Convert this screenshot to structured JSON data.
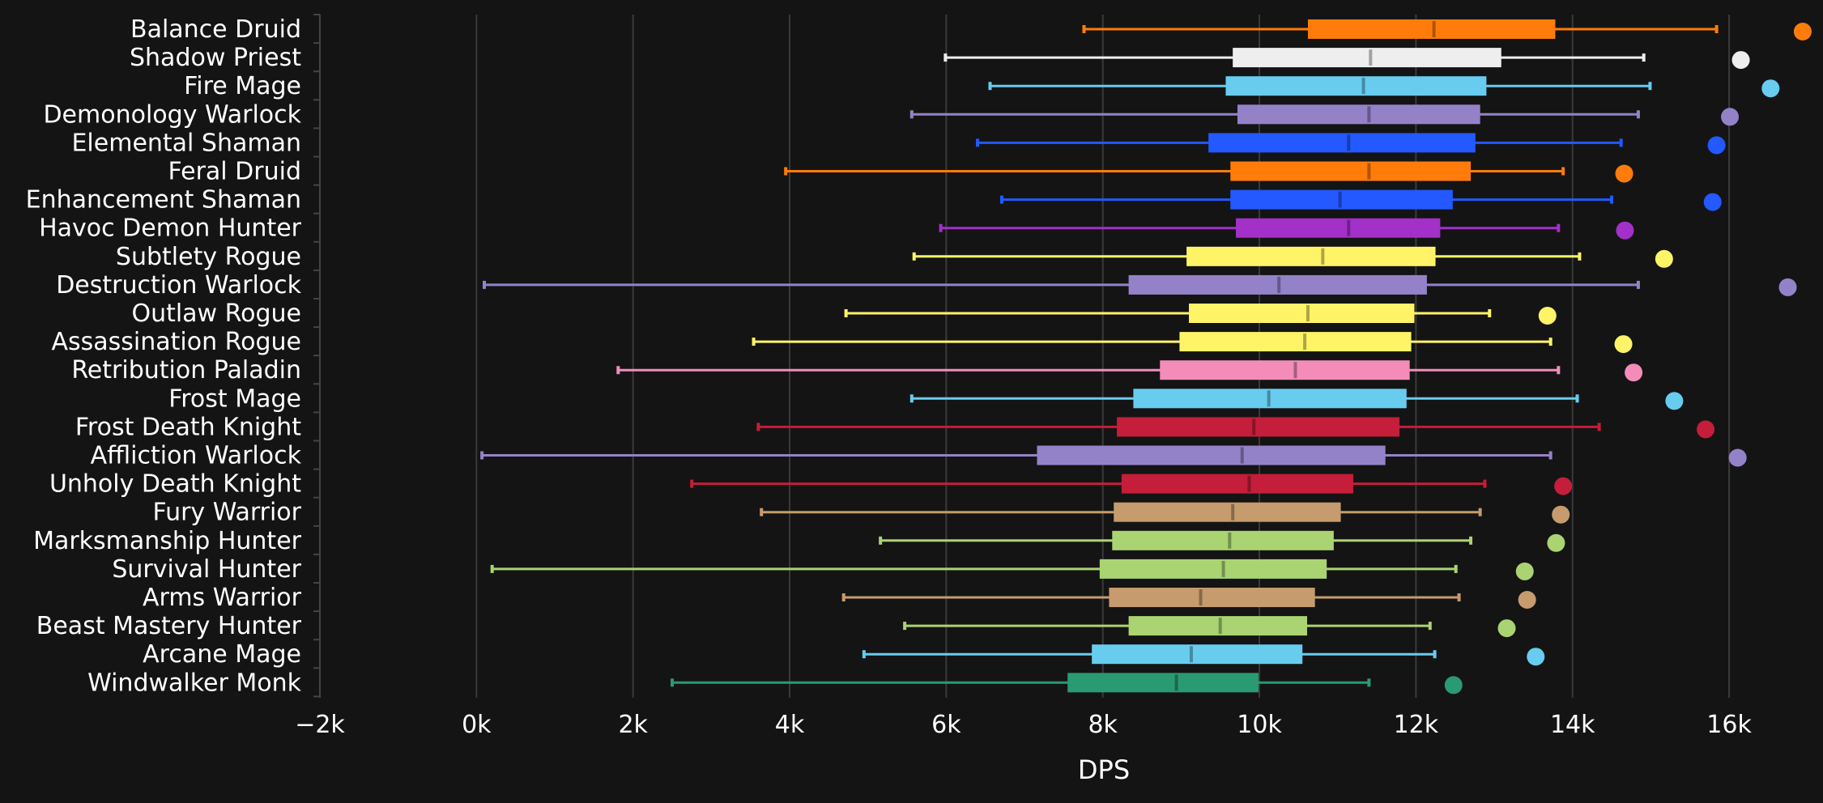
{
  "chart_data": {
    "type": "boxplot",
    "title": "",
    "xlabel": "DPS",
    "ylabel": "",
    "xlim": [
      -2000,
      17200
    ],
    "x_ticks": [
      -2000,
      0,
      2000,
      4000,
      6000,
      8000,
      10000,
      12000,
      14000,
      16000
    ],
    "x_tick_labels": [
      "−2k",
      "0k",
      "2k",
      "4k",
      "6k",
      "8k",
      "10k",
      "12k",
      "14k",
      "16k"
    ],
    "grid": "vertical",
    "background": "#141414",
    "series": [
      {
        "name": "Balance Druid",
        "color": "#ff7c0a",
        "min": 7760,
        "q1": 10620,
        "median": 12230,
        "q3": 13780,
        "max": 15840,
        "outlier": 16940
      },
      {
        "name": "Shadow Priest",
        "color": "#eeeeee",
        "min": 5990,
        "q1": 9660,
        "median": 11420,
        "q3": 13090,
        "max": 14910,
        "outlier": 16150
      },
      {
        "name": "Fire Mage",
        "color": "#68ccef",
        "min": 6560,
        "q1": 9570,
        "median": 11330,
        "q3": 12900,
        "max": 14990,
        "outlier": 16530
      },
      {
        "name": "Demonology Warlock",
        "color": "#9482c9",
        "min": 5560,
        "q1": 9720,
        "median": 11400,
        "q3": 12820,
        "max": 14840,
        "outlier": 16010
      },
      {
        "name": "Elemental Shaman",
        "color": "#2359ff",
        "min": 6400,
        "q1": 9350,
        "median": 11140,
        "q3": 12760,
        "max": 14620,
        "outlier": 15840
      },
      {
        "name": "Feral Druid",
        "color": "#ff7c0a",
        "min": 3950,
        "q1": 9630,
        "median": 11400,
        "q3": 12700,
        "max": 13880,
        "outlier": 14660
      },
      {
        "name": "Enhancement Shaman",
        "color": "#2359ff",
        "min": 6710,
        "q1": 9630,
        "median": 11030,
        "q3": 12470,
        "max": 14500,
        "outlier": 15790
      },
      {
        "name": "Havoc Demon Hunter",
        "color": "#a330c9",
        "min": 5930,
        "q1": 9700,
        "median": 11140,
        "q3": 12310,
        "max": 13820,
        "outlier": 14670
      },
      {
        "name": "Subtlety Rogue",
        "color": "#fff468",
        "min": 5590,
        "q1": 9070,
        "median": 10810,
        "q3": 12250,
        "max": 14090,
        "outlier": 15170
      },
      {
        "name": "Destruction Warlock",
        "color": "#9482c9",
        "min": 100,
        "q1": 8330,
        "median": 10250,
        "q3": 12140,
        "max": 14840,
        "outlier": 16750
      },
      {
        "name": "Outlaw Rogue",
        "color": "#fff468",
        "min": 4720,
        "q1": 9100,
        "median": 10620,
        "q3": 11980,
        "max": 12940,
        "outlier": 13680
      },
      {
        "name": "Assassination Rogue",
        "color": "#fff468",
        "min": 3540,
        "q1": 8980,
        "median": 10580,
        "q3": 11940,
        "max": 13720,
        "outlier": 14650
      },
      {
        "name": "Retribution Paladin",
        "color": "#f48cba",
        "min": 1810,
        "q1": 8730,
        "median": 10460,
        "q3": 11920,
        "max": 13820,
        "outlier": 14780
      },
      {
        "name": "Frost Mage",
        "color": "#68ccef",
        "min": 5560,
        "q1": 8390,
        "median": 10120,
        "q3": 11880,
        "max": 14060,
        "outlier": 15300
      },
      {
        "name": "Frost Death Knight",
        "color": "#c41e3a",
        "min": 3600,
        "q1": 8180,
        "median": 9930,
        "q3": 11790,
        "max": 14340,
        "outlier": 15700
      },
      {
        "name": "Affliction Warlock",
        "color": "#9482c9",
        "min": 70,
        "q1": 7160,
        "median": 9780,
        "q3": 11610,
        "max": 13720,
        "outlier": 16110
      },
      {
        "name": "Unholy Death Knight",
        "color": "#c41e3a",
        "min": 2750,
        "q1": 8240,
        "median": 9870,
        "q3": 11200,
        "max": 12880,
        "outlier": 13880
      },
      {
        "name": "Fury Warrior",
        "color": "#c69b6d",
        "min": 3640,
        "q1": 8140,
        "median": 9660,
        "q3": 11040,
        "max": 12820,
        "outlier": 13850
      },
      {
        "name": "Marksmanship Hunter",
        "color": "#aad372",
        "min": 5160,
        "q1": 8120,
        "median": 9620,
        "q3": 10950,
        "max": 12700,
        "outlier": 13790
      },
      {
        "name": "Survival Hunter",
        "color": "#aad372",
        "min": 200,
        "q1": 7960,
        "median": 9540,
        "q3": 10860,
        "max": 12510,
        "outlier": 13390
      },
      {
        "name": "Arms Warrior",
        "color": "#c69b6d",
        "min": 4690,
        "q1": 8080,
        "median": 9250,
        "q3": 10710,
        "max": 12550,
        "outlier": 13420
      },
      {
        "name": "Beast Mastery Hunter",
        "color": "#aad372",
        "min": 5470,
        "q1": 8330,
        "median": 9500,
        "q3": 10610,
        "max": 12180,
        "outlier": 13160
      },
      {
        "name": "Arcane Mage",
        "color": "#68ccef",
        "min": 4950,
        "q1": 7860,
        "median": 9130,
        "q3": 10550,
        "max": 12240,
        "outlier": 13530
      },
      {
        "name": "Windwalker Monk",
        "color": "#2a9a73",
        "min": 2500,
        "q1": 7550,
        "median": 8940,
        "q3": 9990,
        "max": 11400,
        "outlier": 12480
      }
    ]
  }
}
